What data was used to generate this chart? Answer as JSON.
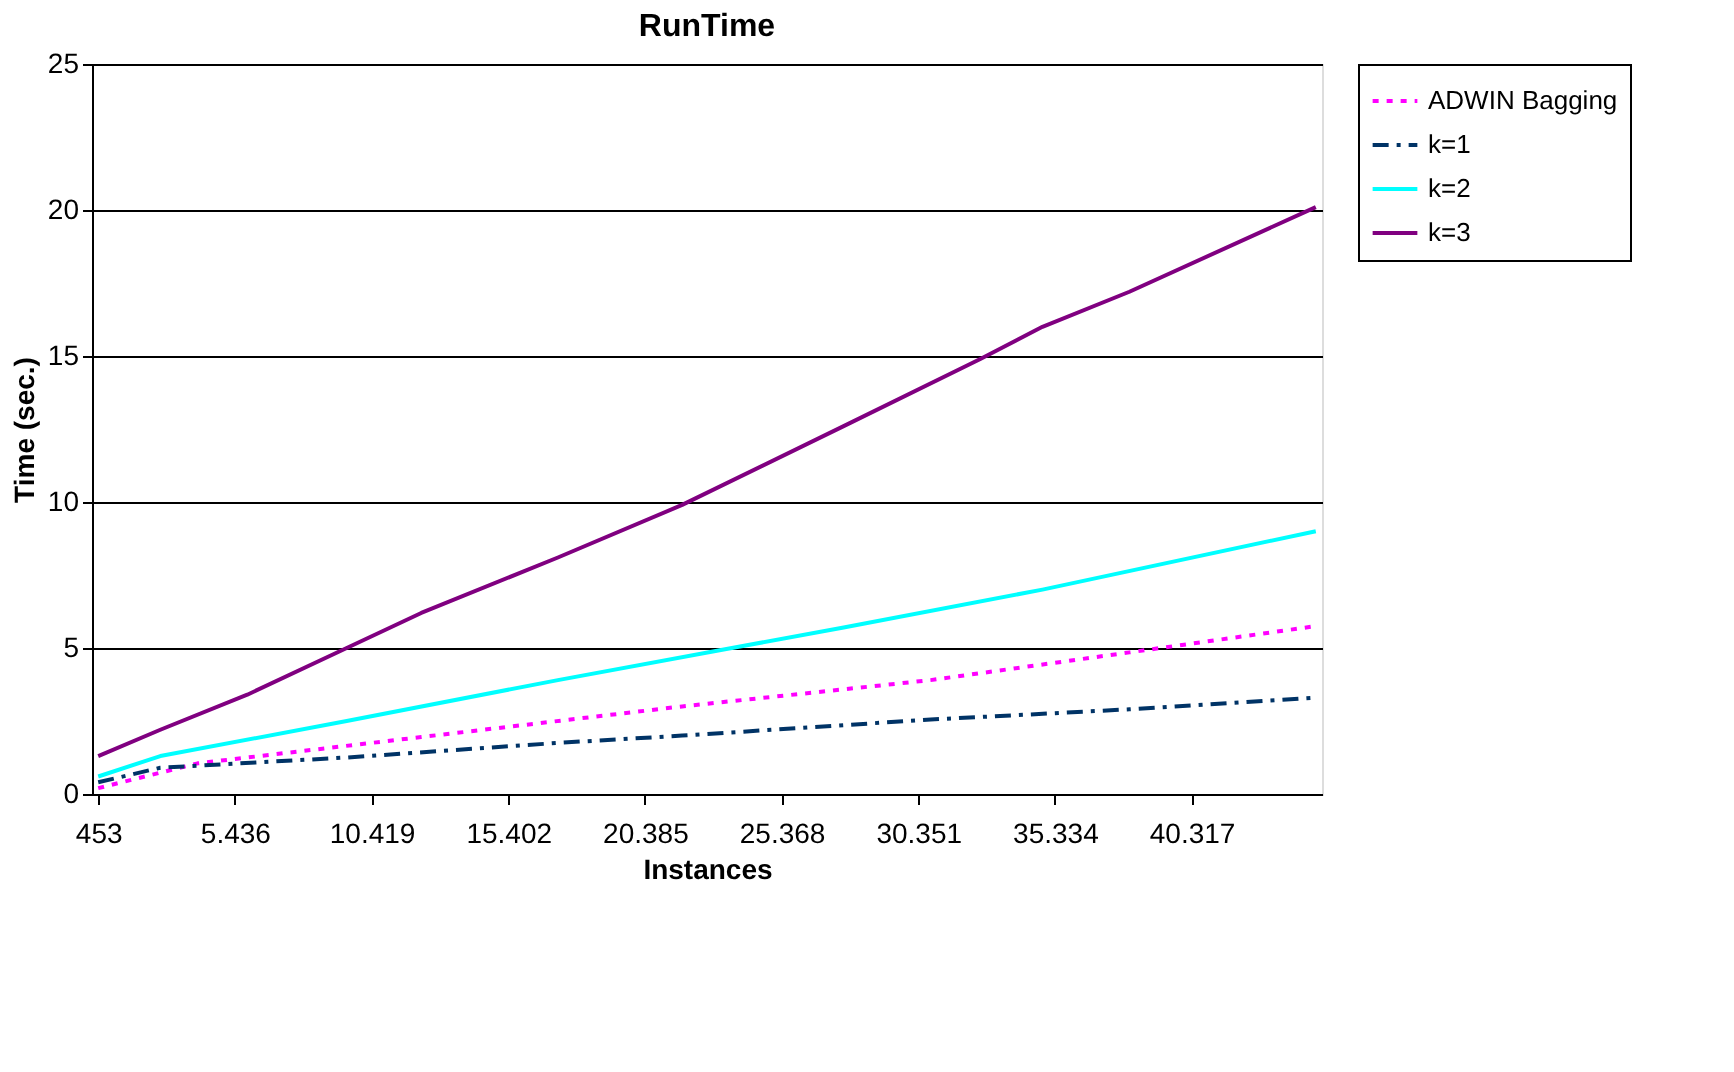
{
  "chart_data": {
    "type": "line",
    "title": "RunTime",
    "xlabel": "Instances",
    "ylabel": "Time (sec.)",
    "xlim": [
      226.5,
      45073.5
    ],
    "xticks": [
      {
        "value": 453,
        "label": "453"
      },
      {
        "value": 5436,
        "label": "5.436"
      },
      {
        "value": 10419,
        "label": "10.419"
      },
      {
        "value": 15402,
        "label": "15.402"
      },
      {
        "value": 20385,
        "label": "20.385"
      },
      {
        "value": 25368,
        "label": "25.368"
      },
      {
        "value": 30351,
        "label": "30.351"
      },
      {
        "value": 35334,
        "label": "35.334"
      },
      {
        "value": 40317,
        "label": "40.317"
      }
    ],
    "ylim": [
      0,
      25
    ],
    "yticks": [
      0,
      5,
      10,
      15,
      20,
      25
    ],
    "grid": "y",
    "legend": "right",
    "marker": "none",
    "series": [
      {
        "name": "ADWIN Bagging",
        "color": "#ff00ff",
        "line_style": "dotted",
        "x": [
          453,
          4077,
          12231,
          21744,
          30804,
          38052,
          44847
        ],
        "values": [
          0.2,
          1.05,
          1.95,
          3.0,
          3.9,
          4.85,
          5.75
        ]
      },
      {
        "name": "k=1",
        "color": "#003366",
        "line_style": "dashed",
        "x": [
          453,
          2718,
          9513,
          17214,
          21744,
          30804,
          38052,
          44847
        ],
        "values": [
          0.4,
          0.9,
          1.25,
          1.75,
          2.0,
          2.55,
          2.9,
          3.3
        ]
      },
      {
        "name": "k=2",
        "color": "#00ffff",
        "line_style": "solid",
        "x": [
          453,
          2718,
          9513,
          17214,
          23556,
          27633,
          34881,
          44847
        ],
        "values": [
          0.6,
          1.3,
          2.5,
          3.9,
          5.0,
          5.7,
          7.0,
          9.0
        ]
      },
      {
        "name": "k=3",
        "color": "#800080",
        "line_style": "solid",
        "x": [
          453,
          2718,
          5889,
          9513,
          12231,
          17214,
          21744,
          27633,
          32616,
          34881,
          38052,
          44847
        ],
        "values": [
          1.3,
          2.2,
          3.4,
          5.0,
          6.2,
          8.1,
          9.9,
          12.6,
          14.9,
          16.0,
          17.2,
          20.1
        ]
      }
    ]
  }
}
